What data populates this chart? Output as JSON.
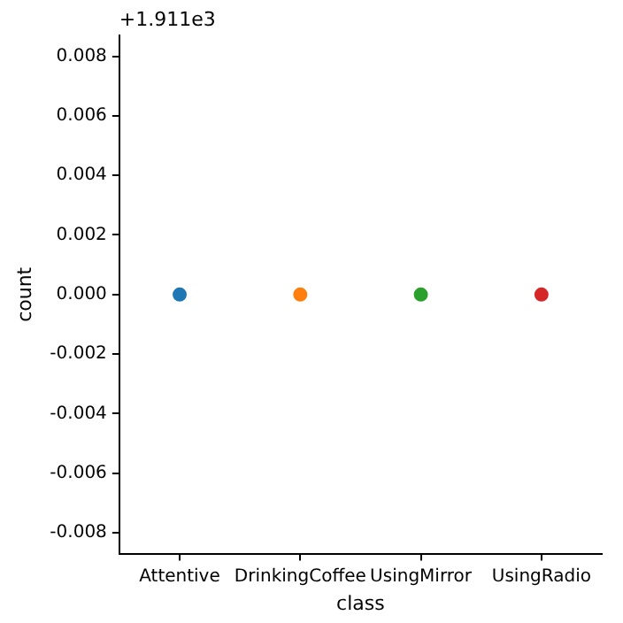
{
  "chart_data": {
    "type": "scatter",
    "xlabel": "class",
    "ylabel": "count",
    "categories": [
      "Attentive",
      "DrinkingCoffee",
      "UsingMirror",
      "UsingRadio"
    ],
    "values": [
      0,
      0,
      0,
      0
    ],
    "colors": [
      "#1f77b4",
      "#ff7f0e",
      "#2ca02c",
      "#d62728"
    ],
    "ylim": [
      -0.0087,
      0.0087
    ],
    "yticks": [
      -0.008,
      -0.006,
      -0.004,
      -0.002,
      {
        "value": 0,
        "label": "0.000"
      },
      0.002,
      0.004,
      0.006,
      0.008
    ],
    "annotations": [
      "+1.911e3"
    ],
    "marker": "circle",
    "grid": false,
    "legend": false
  }
}
